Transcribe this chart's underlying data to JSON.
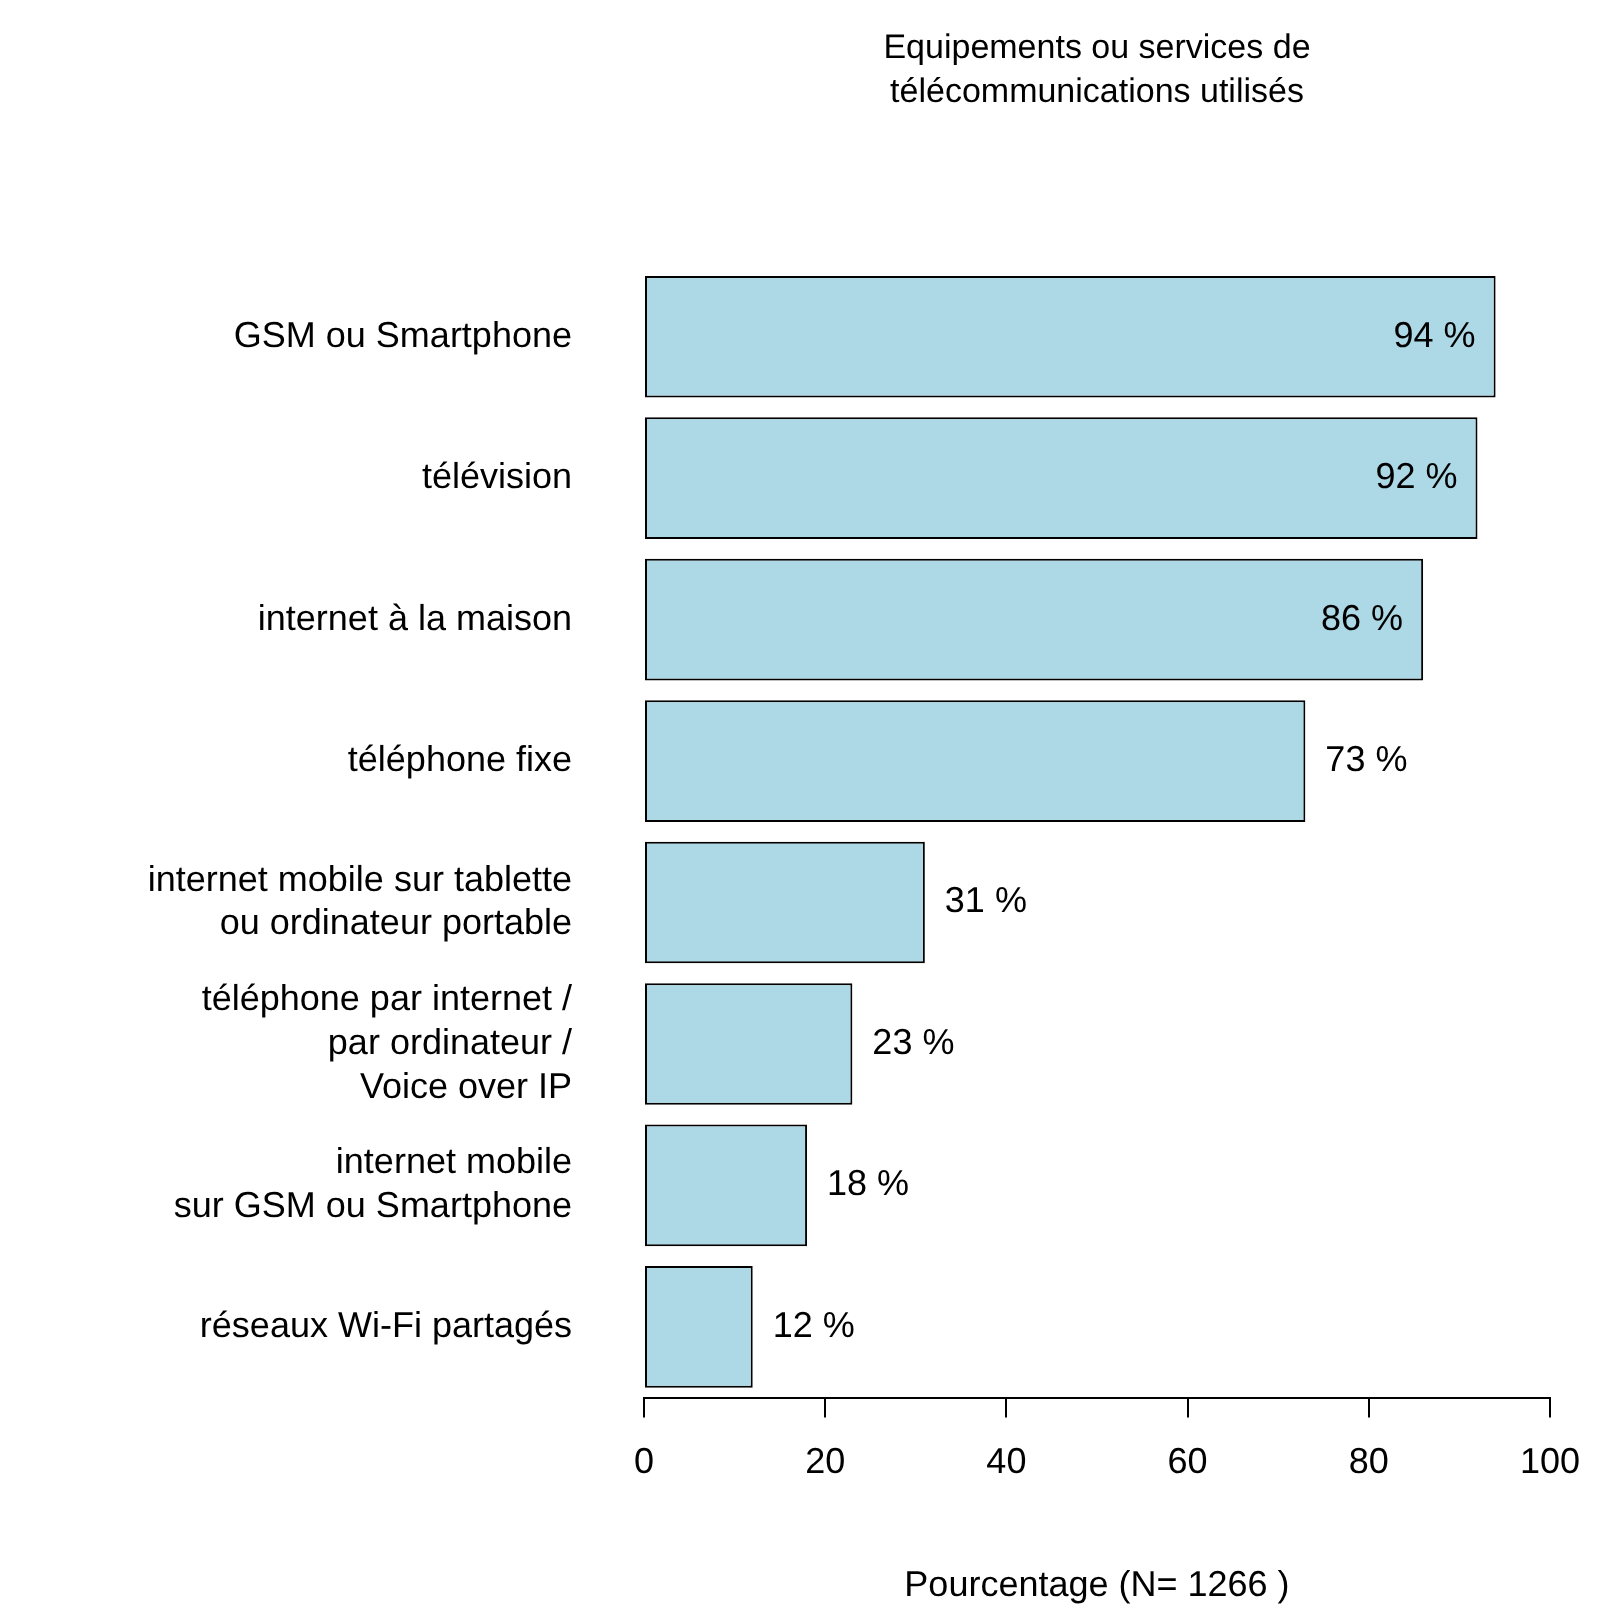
{
  "chart_data": {
    "type": "bar",
    "orientation": "horizontal",
    "title": "Equipements ou services de\ntélécommunications utilisés",
    "categories": [
      "GSM ou Smartphone",
      "télévision",
      "internet à la maison",
      "téléphone fixe",
      "internet mobile sur tablette\nou ordinateur portable",
      "téléphone par internet /\npar ordinateur /\nVoice over IP",
      "internet mobile\nsur GSM ou Smartphone",
      "réseaux Wi-Fi partagés"
    ],
    "values": [
      94,
      92,
      86,
      73,
      31,
      23,
      18,
      12
    ],
    "value_labels": [
      "94 %",
      "92 %",
      "86 %",
      "73 %",
      "31 %",
      "23 %",
      "18 %",
      "12 %"
    ],
    "color": "#add8e6",
    "xlim": [
      0,
      100
    ],
    "xticks": [
      0,
      20,
      40,
      60,
      80,
      100
    ],
    "xlabel": "Pourcentage (N= 1266 )"
  }
}
